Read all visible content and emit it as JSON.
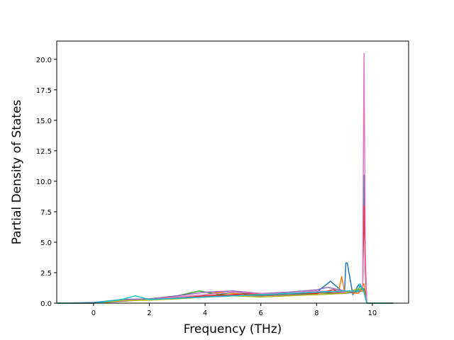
{
  "chart_data": {
    "type": "line",
    "title": "",
    "xlabel": "Frequency (THz)",
    "ylabel": "Partial Density of States",
    "xlim": [
      -1.32,
      11.3
    ],
    "ylim": [
      0,
      21.5
    ],
    "x_ticks": [
      0,
      2,
      4,
      6,
      8,
      10
    ],
    "x_tick_labels": [
      "0",
      "2",
      "4",
      "6",
      "8",
      "10"
    ],
    "y_ticks": [
      0.0,
      2.5,
      5.0,
      7.5,
      10.0,
      12.5,
      15.0,
      17.5,
      20.0
    ],
    "y_tick_labels": [
      "0.0",
      "2.5",
      "5.0",
      "7.5",
      "10.0",
      "12.5",
      "15.0",
      "17.5",
      "20.0"
    ],
    "grid": false,
    "legend": "none",
    "x_range_plotted": [
      -1.3,
      10.75
    ],
    "series_colors": [
      "#1f77b4",
      "#ff7f0e",
      "#2ca02c",
      "#d62728",
      "#9467bd",
      "#8c564b",
      "#e377c2",
      "#7f7f7f",
      "#bcbd22",
      "#17becf"
    ],
    "series": [
      {
        "x": [
          -1.3,
          0.0,
          1.0,
          2.0,
          3.0,
          4.0,
          5.0,
          6.0,
          7.0,
          8.0,
          8.5,
          9.0,
          9.05,
          9.1,
          9.3,
          9.5,
          9.65,
          9.7,
          9.75,
          9.8,
          10.0,
          10.75
        ],
        "y": [
          0.0,
          0.05,
          0.3,
          0.35,
          0.45,
          0.55,
          0.6,
          0.65,
          0.8,
          0.9,
          1.8,
          0.8,
          3.3,
          3.3,
          0.7,
          1.5,
          1.2,
          10.5,
          3.0,
          0.0,
          0.0,
          0.0
        ]
      },
      {
        "x": [
          -1.3,
          0.0,
          1.0,
          2.0,
          3.0,
          4.0,
          4.5,
          5.0,
          6.0,
          7.0,
          8.0,
          8.8,
          8.9,
          9.0,
          9.5,
          9.7,
          9.8,
          10.75
        ],
        "y": [
          0.0,
          0.0,
          0.2,
          0.3,
          0.5,
          0.7,
          0.9,
          0.8,
          0.6,
          0.7,
          0.8,
          1.0,
          2.2,
          0.9,
          0.8,
          1.6,
          0.0,
          0.0
        ]
      },
      {
        "x": [
          -1.3,
          0.0,
          1.0,
          2.0,
          3.0,
          3.8,
          4.5,
          5.0,
          6.0,
          7.0,
          8.0,
          9.0,
          9.7,
          9.8,
          10.75
        ],
        "y": [
          0.0,
          0.0,
          0.25,
          0.35,
          0.6,
          1.0,
          0.7,
          0.9,
          0.7,
          0.8,
          0.7,
          0.9,
          1.2,
          0.0,
          0.0
        ]
      },
      {
        "x": [
          -1.3,
          0.0,
          1.0,
          2.0,
          3.0,
          4.0,
          5.0,
          6.0,
          7.0,
          8.0,
          8.6,
          9.0,
          9.65,
          9.7,
          9.75,
          9.8,
          10.75
        ],
        "y": [
          0.0,
          0.0,
          0.2,
          0.3,
          0.4,
          0.6,
          0.7,
          0.8,
          0.6,
          0.8,
          1.1,
          0.8,
          1.0,
          8.0,
          2.5,
          0.0,
          0.0
        ]
      },
      {
        "x": [
          -1.3,
          0.0,
          1.0,
          2.0,
          3.0,
          4.0,
          5.0,
          6.0,
          7.0,
          8.0,
          8.4,
          9.0,
          9.7,
          9.8,
          10.75
        ],
        "y": [
          0.0,
          0.0,
          0.3,
          0.35,
          0.6,
          0.9,
          1.0,
          0.8,
          0.9,
          1.1,
          1.3,
          1.0,
          1.0,
          0.0,
          0.0
        ]
      },
      {
        "x": [
          -1.3,
          0.0,
          1.0,
          2.0,
          3.0,
          4.0,
          5.0,
          6.0,
          7.0,
          8.0,
          9.0,
          9.7,
          9.8,
          10.75
        ],
        "y": [
          0.0,
          0.0,
          0.15,
          0.3,
          0.4,
          0.5,
          0.6,
          0.6,
          0.7,
          0.9,
          0.8,
          1.1,
          0.0,
          0.0
        ]
      },
      {
        "x": [
          -1.3,
          0.0,
          1.0,
          2.0,
          3.0,
          4.0,
          5.0,
          6.0,
          7.0,
          8.0,
          9.0,
          9.65,
          9.7,
          9.75,
          9.8,
          10.75
        ],
        "y": [
          0.0,
          0.0,
          0.2,
          0.3,
          0.5,
          0.7,
          0.9,
          0.8,
          0.8,
          1.0,
          0.9,
          1.0,
          20.5,
          4.0,
          0.0,
          0.0
        ]
      },
      {
        "x": [
          -1.3,
          0.0,
          1.0,
          2.0,
          3.0,
          4.0,
          5.0,
          6.0,
          7.0,
          8.0,
          9.0,
          9.7,
          9.8,
          10.75
        ],
        "y": [
          0.0,
          0.0,
          0.2,
          0.3,
          0.4,
          0.5,
          0.6,
          0.6,
          0.7,
          0.7,
          0.8,
          1.0,
          0.0,
          0.0
        ]
      },
      {
        "x": [
          -1.3,
          0.0,
          1.0,
          2.0,
          3.0,
          4.0,
          5.0,
          6.0,
          7.0,
          8.0,
          9.0,
          9.5,
          9.7,
          9.8,
          10.75
        ],
        "y": [
          0.0,
          0.0,
          0.2,
          0.25,
          0.35,
          0.5,
          0.6,
          0.5,
          0.6,
          0.7,
          0.8,
          1.2,
          0.9,
          0.0,
          0.0
        ]
      },
      {
        "x": [
          -1.3,
          0.0,
          1.0,
          1.5,
          2.0,
          3.0,
          4.0,
          5.0,
          6.0,
          7.0,
          8.0,
          9.0,
          9.5,
          9.55,
          9.7,
          9.8,
          10.75
        ],
        "y": [
          0.0,
          0.0,
          0.3,
          0.6,
          0.3,
          0.4,
          0.5,
          0.6,
          0.7,
          0.8,
          0.9,
          1.0,
          1.0,
          1.6,
          1.0,
          0.0,
          0.0
        ]
      }
    ]
  }
}
